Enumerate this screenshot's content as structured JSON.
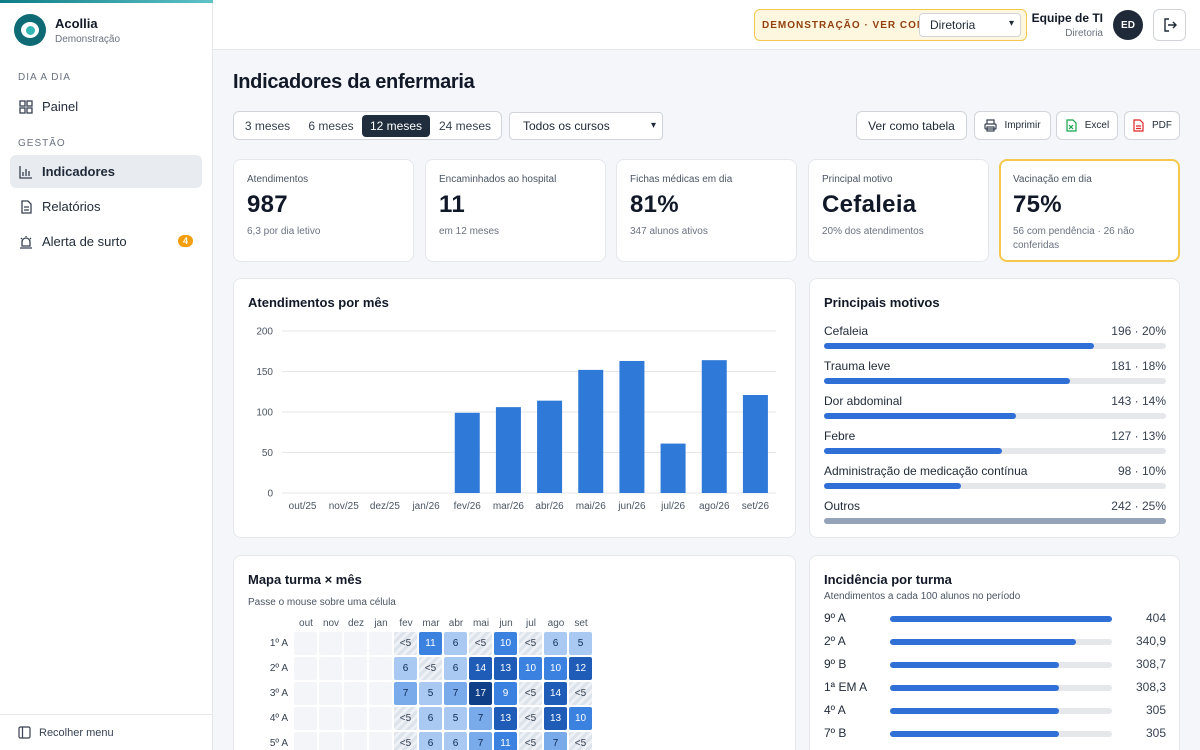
{
  "brand": {
    "name": "Acollia",
    "subtitle": "Demonstração"
  },
  "sidebar": {
    "sections": [
      "DIA A DIA",
      "GESTÃO"
    ],
    "items": [
      {
        "label": "Painel",
        "icon": "grid-icon"
      },
      {
        "label": "Indicadores",
        "icon": "bar-chart-icon",
        "active": true
      },
      {
        "label": "Relatórios",
        "icon": "document-icon"
      },
      {
        "label": "Alerta de surto",
        "icon": "alarm-icon",
        "badge": "4"
      }
    ],
    "collapse_label": "Recolher menu"
  },
  "topbar": {
    "demo_label": "DEMONSTRAÇÃO · VER COMO",
    "view_as_value": "Diretoria",
    "user_name": "Equipe de TI",
    "user_role": "Diretoria",
    "avatar_initials": "ED"
  },
  "page": {
    "title": "Indicadores da enfermaria",
    "periods": [
      "3 meses",
      "6 meses",
      "12 meses",
      "24 meses"
    ],
    "active_period": "12 meses",
    "course_value": "Todos os cursos",
    "buttons": {
      "table": "Ver como tabela",
      "print": "Imprimir",
      "excel": "Excel",
      "pdf": "PDF"
    }
  },
  "kpis": [
    {
      "label": "Atendimentos",
      "value": "987",
      "sub": "6,3 por dia letivo"
    },
    {
      "label": "Encaminhados ao hospital",
      "value": "11",
      "sub": "em 12 meses"
    },
    {
      "label": "Fichas médicas em dia",
      "value": "81%",
      "sub": "347 alunos ativos"
    },
    {
      "label": "Principal motivo",
      "value": "Cefaleia",
      "sub": "20% dos atendimentos"
    },
    {
      "label": "Vacinação em dia",
      "value": "75%",
      "sub": "56 com pendência · 26 não conferidas",
      "highlight": true
    }
  ],
  "chart_title": "Atendimentos por mês",
  "chart_data": {
    "type": "bar",
    "categories": [
      "out/25",
      "nov/25",
      "dez/25",
      "jan/26",
      "fev/26",
      "mar/26",
      "abr/26",
      "mai/26",
      "jun/26",
      "jul/26",
      "ago/26",
      "set/26"
    ],
    "values": [
      0,
      0,
      0,
      0,
      99,
      106,
      114,
      152,
      163,
      61,
      164,
      121
    ],
    "ylim": [
      0,
      200
    ],
    "yticks": [
      0,
      50,
      100,
      150,
      200
    ],
    "grid": true,
    "color": "#2f7ad9"
  },
  "reasons": {
    "title": "Principais motivos",
    "items": [
      {
        "label": "Cefaleia",
        "value": "196 · 20%",
        "pct": 0.79
      },
      {
        "label": "Trauma leve",
        "value": "181 · 18%",
        "pct": 0.72
      },
      {
        "label": "Dor abdominal",
        "value": "143 · 14%",
        "pct": 0.56
      },
      {
        "label": "Febre",
        "value": "127 · 13%",
        "pct": 0.52
      },
      {
        "label": "Administração de medicação contínua",
        "value": "98 · 10%",
        "pct": 0.4
      },
      {
        "label": "Outros",
        "value": "242 · 25%",
        "pct": 1.0,
        "other": true
      }
    ]
  },
  "heatmap": {
    "title": "Mapa turma × mês",
    "hint": "Passe o mouse sobre uma célula",
    "months": [
      "out",
      "nov",
      "dez",
      "jan",
      "fev",
      "mar",
      "abr",
      "mai",
      "jun",
      "jul",
      "ago",
      "set"
    ],
    "rows": [
      {
        "label": "1º A",
        "cells": [
          "",
          "",
          "",
          "",
          "<5",
          "11",
          "6",
          "<5",
          "10",
          "<5",
          "6",
          "5"
        ]
      },
      {
        "label": "2º A",
        "cells": [
          "",
          "",
          "",
          "",
          "6",
          "<5",
          "6",
          "14",
          "13",
          "10",
          "10",
          "12"
        ]
      },
      {
        "label": "3º A",
        "cells": [
          "",
          "",
          "",
          "",
          "7",
          "5",
          "7",
          "17",
          "9",
          "<5",
          "14",
          "<5"
        ]
      },
      {
        "label": "4º A",
        "cells": [
          "",
          "",
          "",
          "",
          "<5",
          "6",
          "5",
          "7",
          "13",
          "<5",
          "13",
          "10"
        ]
      },
      {
        "label": "5º A",
        "cells": [
          "",
          "",
          "",
          "",
          "<5",
          "6",
          "6",
          "7",
          "11",
          "<5",
          "7",
          "<5"
        ]
      }
    ]
  },
  "incidence": {
    "title": "Incidência por turma",
    "subtitle": "Atendimentos a cada 100 alunos no período",
    "items": [
      {
        "label": "9º A",
        "value": "404",
        "pct": 1.0
      },
      {
        "label": "2º A",
        "value": "340,9",
        "pct": 0.84
      },
      {
        "label": "9º B",
        "value": "308,7",
        "pct": 0.76
      },
      {
        "label": "1ª EM A",
        "value": "308,3",
        "pct": 0.76
      },
      {
        "label": "4º A",
        "value": "305",
        "pct": 0.76
      },
      {
        "label": "7º B",
        "value": "305",
        "pct": 0.76
      }
    ]
  }
}
